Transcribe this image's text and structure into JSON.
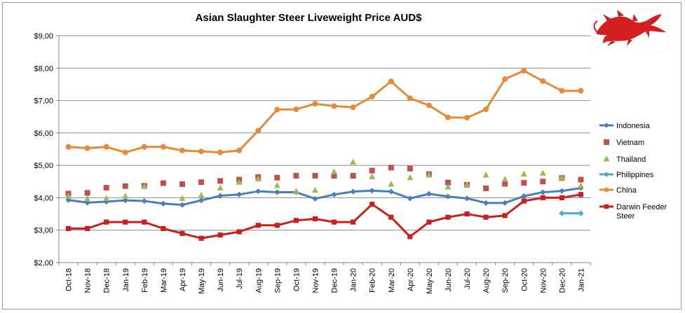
{
  "chart_data": {
    "type": "line",
    "title": "Asian Slaughter Steer Liveweight Price AUD$",
    "xlabel": "",
    "ylabel": "",
    "ylim": [
      2,
      9
    ],
    "yticks": [
      2,
      3,
      4,
      5,
      6,
      7,
      8,
      9
    ],
    "ytick_labels": [
      "$2,00",
      "$3,00",
      "$4,00",
      "$5,00",
      "$6,00",
      "$7,00",
      "$8,00",
      "$9,00"
    ],
    "grid": "horizontal",
    "legend_position": "right",
    "categories": [
      "Oct-18",
      "Nov-18",
      "Dec-18",
      "Jan-19",
      "Feb-19",
      "Mar-19",
      "Apr-19",
      "May-19",
      "Jun-19",
      "Jul-19",
      "Aug-19",
      "Sep-19",
      "Oct-19",
      "Nov-19",
      "Dec-19",
      "Jan-20",
      "Feb-20",
      "Mar-20",
      "Apr-20",
      "May-20",
      "Jun-20",
      "Jul-20",
      "Aug-20",
      "Sep-20",
      "Oct-20",
      "Nov-20",
      "Dec-20",
      "Jan-21"
    ],
    "series": [
      {
        "name": "Indonesia",
        "style": "line",
        "marker": "diamond",
        "color": "#4a7ebb",
        "values": [
          3.93,
          3.85,
          3.88,
          3.92,
          3.9,
          3.82,
          3.78,
          3.92,
          4.06,
          4.1,
          4.2,
          4.17,
          4.17,
          3.97,
          4.1,
          4.19,
          4.22,
          4.19,
          3.98,
          4.12,
          4.04,
          3.98,
          3.84,
          3.84,
          4.05,
          4.17,
          4.21,
          4.3
        ]
      },
      {
        "name": "Vietnam",
        "style": "markers",
        "marker": "square",
        "color": "#c0504d",
        "values": [
          4.13,
          4.15,
          4.31,
          4.36,
          4.37,
          4.45,
          4.42,
          4.48,
          4.52,
          4.56,
          4.64,
          4.62,
          4.68,
          4.68,
          4.68,
          4.68,
          4.84,
          4.93,
          4.9,
          4.73,
          4.47,
          4.4,
          4.29,
          4.43,
          4.46,
          4.5,
          4.61,
          4.56
        ]
      },
      {
        "name": "Thailand",
        "style": "markers",
        "marker": "triangle",
        "color": "#9bbb59",
        "values": [
          4.05,
          3.97,
          3.98,
          4.05,
          4.35,
          null,
          3.98,
          4.08,
          4.3,
          4.48,
          4.58,
          4.38,
          4.2,
          4.23,
          4.8,
          5.1,
          4.65,
          4.42,
          4.62,
          4.7,
          4.33,
          4.4,
          4.7,
          4.57,
          4.73,
          4.76,
          4.62,
          4.37
        ]
      },
      {
        "name": "Philippines",
        "style": "line",
        "marker": "diamond",
        "color": "#4bacc6",
        "values": [
          null,
          null,
          null,
          null,
          null,
          null,
          null,
          null,
          null,
          null,
          null,
          null,
          null,
          null,
          null,
          null,
          null,
          null,
          null,
          null,
          null,
          null,
          null,
          null,
          null,
          null,
          3.52,
          3.52
        ]
      },
      {
        "name": "China",
        "style": "line",
        "marker": "circle",
        "color": "#e48a38",
        "values": [
          5.57,
          5.53,
          5.57,
          5.4,
          5.57,
          5.57,
          5.46,
          5.43,
          5.4,
          5.46,
          6.07,
          6.72,
          6.73,
          6.9,
          6.83,
          6.79,
          7.12,
          7.59,
          7.07,
          6.85,
          6.48,
          6.47,
          6.73,
          7.66,
          7.92,
          7.6,
          7.3,
          7.3
        ]
      },
      {
        "name": "Darwin Feeder Steer",
        "style": "line",
        "marker": "square",
        "color": "#c8201f",
        "values": [
          3.05,
          3.05,
          3.25,
          3.25,
          3.25,
          3.05,
          2.9,
          2.75,
          2.85,
          2.95,
          3.15,
          3.15,
          3.3,
          3.35,
          3.25,
          3.25,
          3.8,
          3.4,
          2.8,
          3.25,
          3.4,
          3.5,
          3.4,
          3.45,
          3.9,
          4.0,
          4.0,
          4.1
        ]
      }
    ]
  },
  "logo": {
    "name": "red-dragon-logo",
    "color": "#d22020"
  }
}
